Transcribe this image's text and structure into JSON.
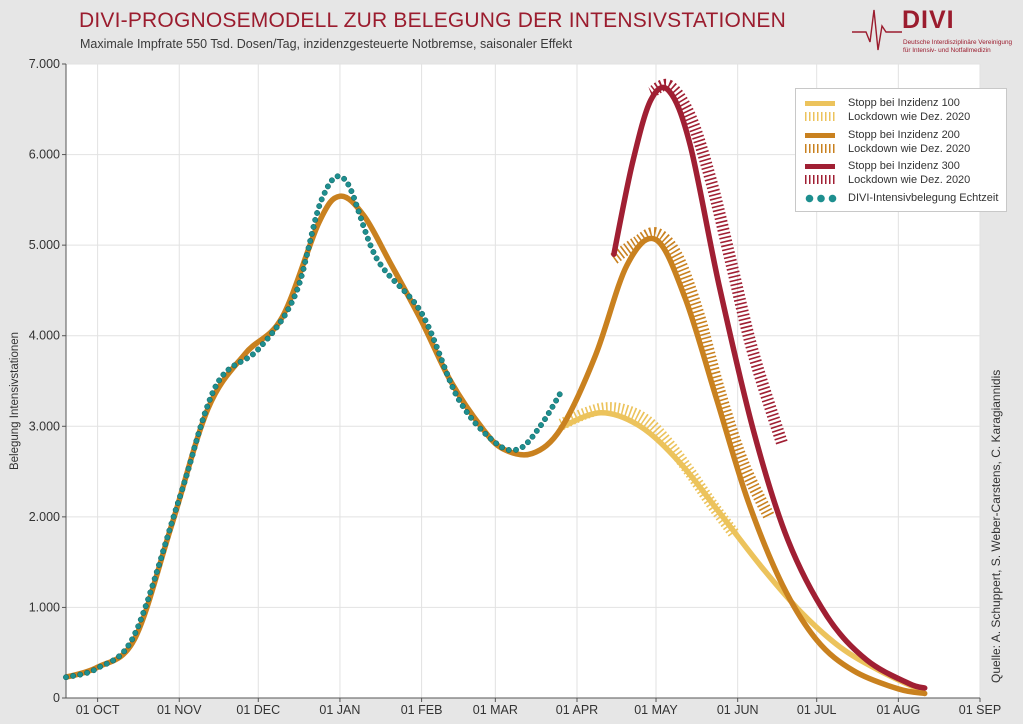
{
  "title": "DIVI-PROGNOSEMODELL ZUR BELEGUNG DER INTENSIVSTATIONEN",
  "subtitle": "Maximale Impfrate 550 Tsd. Dosen/Tag, inzidenzgesteuerte Notbremse, saisonaler Effekt",
  "logo": {
    "word": "DIVI",
    "sub1": "Deutsche Interdisziplinäre Vereinigung",
    "sub2": "für Intensiv- und Notfallmedizin"
  },
  "source": "Quelle: A. Schuppert, S. Weber-Carstens, C. Karagiannidis",
  "colors": {
    "title": "#9b1c2e",
    "s100": "#ecc35c",
    "s200": "#c9811f",
    "s300": "#a01f33",
    "echtzeit": "#1e8f8f",
    "background": "#e6e6e6",
    "plot": "#ffffff"
  },
  "chart_data": {
    "type": "line",
    "title": "DIVI-PROGNOSEMODELL ZUR BELEGUNG DER INTENSIVSTATIONEN",
    "xlabel": "",
    "ylabel": "Belegung Intensivstationen",
    "ylim": [
      0,
      7000
    ],
    "yticks": [
      0,
      1000,
      2000,
      3000,
      4000,
      5000,
      6000,
      7000
    ],
    "ytick_labels": [
      "0",
      "1.000",
      "2.000",
      "3.000",
      "4.000",
      "5.000",
      "6.000",
      "7.000"
    ],
    "x_unit": "date",
    "xlim": [
      "2020-09-19",
      "2021-09-01"
    ],
    "xticks": [
      "2020-10-01",
      "2020-11-01",
      "2020-12-01",
      "2021-01-01",
      "2021-02-01",
      "2021-03-01",
      "2021-04-01",
      "2021-05-01",
      "2021-06-01",
      "2021-07-01",
      "2021-08-01",
      "2021-09-01"
    ],
    "xtick_labels": [
      "01 OCT",
      "01 NOV",
      "01 DEC",
      "01 JAN",
      "01 FEB",
      "01 MAR",
      "01 APR",
      "01 MAY",
      "01 JUN",
      "01 JUL",
      "01 AUG",
      "01 SEP"
    ],
    "grid": true,
    "legend": "top-right",
    "legend_entries": [
      "Stopp bei Inzidenz 100",
      "Lockdown wie Dez. 2020",
      "Stopp bei Inzidenz 200",
      "Lockdown wie Dez. 2020",
      "Stopp bei Inzidenz 300",
      "Lockdown wie Dez. 2020",
      "DIVI-Intensivbelegung Echtzeit"
    ],
    "series": [
      {
        "name": "Stopp bei Inzidenz 100",
        "style": "solid",
        "color": "#ecc35c",
        "x": [
          "2021-03-26",
          "2021-04-10",
          "2021-04-25",
          "2021-05-10",
          "2021-05-25",
          "2021-06-10",
          "2021-06-25",
          "2021-07-10",
          "2021-07-25",
          "2021-08-10"
        ],
        "y": [
          2990,
          3150,
          3000,
          2600,
          2050,
          1450,
          950,
          560,
          300,
          80
        ]
      },
      {
        "name": "Lockdown wie Dez. 2020",
        "style": "hatched",
        "color": "#ecc35c",
        "x": [
          "2021-03-26",
          "2021-04-04",
          "2021-04-12",
          "2021-04-20",
          "2021-04-28",
          "2021-05-06",
          "2021-05-14",
          "2021-05-22",
          "2021-05-31"
        ],
        "y": [
          3020,
          3140,
          3200,
          3170,
          3050,
          2800,
          2490,
          2150,
          1800
        ]
      },
      {
        "name": "Stopp bei Inzidenz 200",
        "style": "solid",
        "color": "#c9811f",
        "x": [
          "2020-09-19",
          "2020-10-01",
          "2020-10-15",
          "2020-10-29",
          "2020-11-12",
          "2020-11-26",
          "2020-12-10",
          "2020-12-24",
          "2021-01-01",
          "2021-01-10",
          "2021-01-20",
          "2021-02-01",
          "2021-02-12",
          "2021-02-24",
          "2021-03-04",
          "2021-03-15",
          "2021-03-26",
          "2021-04-08",
          "2021-04-20",
          "2021-05-01",
          "2021-05-12",
          "2021-05-24",
          "2021-06-05",
          "2021-06-18",
          "2021-07-01",
          "2021-07-15",
          "2021-08-01",
          "2021-08-11"
        ],
        "y": [
          230,
          340,
          650,
          1900,
          3200,
          3800,
          4200,
          5250,
          5540,
          5330,
          4810,
          4160,
          3500,
          2980,
          2750,
          2700,
          2980,
          3780,
          4780,
          5060,
          4420,
          3300,
          2170,
          1250,
          640,
          300,
          100,
          50
        ]
      },
      {
        "name": "Lockdown wie Dez. 2020",
        "style": "hatched",
        "color": "#c9811f",
        "x": [
          "2021-04-15",
          "2021-04-23",
          "2021-05-01",
          "2021-05-09",
          "2021-05-17",
          "2021-05-25",
          "2021-06-03",
          "2021-06-13"
        ],
        "y": [
          4850,
          5020,
          5130,
          4880,
          4250,
          3400,
          2600,
          2000
        ]
      },
      {
        "name": "Stopp bei Inzidenz 300",
        "style": "solid",
        "color": "#a01f33",
        "x": [
          "2021-04-15",
          "2021-04-22",
          "2021-04-29",
          "2021-05-06",
          "2021-05-14",
          "2021-05-25",
          "2021-06-07",
          "2021-06-20",
          "2021-07-05",
          "2021-07-20",
          "2021-08-05",
          "2021-08-11"
        ],
        "y": [
          4900,
          5900,
          6600,
          6700,
          6100,
          4550,
          2950,
          1750,
          900,
          420,
          160,
          110
        ]
      },
      {
        "name": "Lockdown wie Dez. 2020",
        "style": "hatched",
        "color": "#a01f33",
        "x": [
          "2021-04-29",
          "2021-05-06",
          "2021-05-14",
          "2021-05-22",
          "2021-05-30",
          "2021-06-07",
          "2021-06-18"
        ],
        "y": [
          6680,
          6760,
          6420,
          5700,
          4750,
          3800,
          2800
        ]
      },
      {
        "name": "DIVI-Intensivbelegung Echtzeit",
        "style": "dots",
        "color": "#1e8f8f",
        "x": [
          "2020-09-19",
          "2020-10-01",
          "2020-10-15",
          "2020-11-01",
          "2020-11-15",
          "2020-12-01",
          "2020-12-15",
          "2020-12-25",
          "2021-01-03",
          "2021-01-15",
          "2021-02-01",
          "2021-02-15",
          "2021-03-01",
          "2021-03-10",
          "2021-03-18",
          "2021-03-26"
        ],
        "y": [
          230,
          330,
          700,
          2200,
          3450,
          3850,
          4450,
          5500,
          5720,
          4850,
          4250,
          3300,
          2820,
          2750,
          3000,
          3380
        ]
      }
    ]
  }
}
